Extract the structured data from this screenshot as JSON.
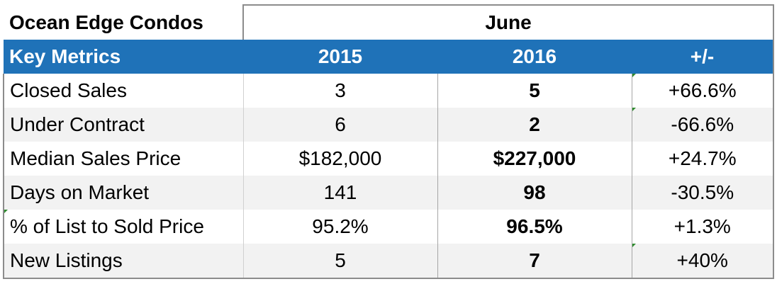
{
  "table": {
    "company": "Ocean Edge Condos",
    "month": "June",
    "headers": {
      "metric": "Key Metrics",
      "year1": "2015",
      "year2": "2016",
      "change": "+/-"
    },
    "rows": [
      {
        "metric": "Closed Sales",
        "year1": "3",
        "year2": "5",
        "change": "+66.6%"
      },
      {
        "metric": "Under Contract",
        "year1": "6",
        "year2": "2",
        "change": "-66.6%"
      },
      {
        "metric": "Median Sales Price",
        "year1": "$182,000",
        "year2": "$227,000",
        "change": "+24.7%"
      },
      {
        "metric": "Days on Market",
        "year1": "141",
        "year2": "98",
        "change": "-30.5%"
      },
      {
        "metric": "% of List to Sold Price",
        "year1": "95.2%",
        "year2": "96.5%",
        "change": "+1.3%"
      },
      {
        "metric": "New Listings",
        "year1": "5",
        "year2": "7",
        "change": "+40%"
      }
    ]
  },
  "colors": {
    "header_background": "#1f72b8",
    "header_text": "#ffffff",
    "shaded_row": "#f2f2f2",
    "indicator": "#2e8b2e"
  }
}
